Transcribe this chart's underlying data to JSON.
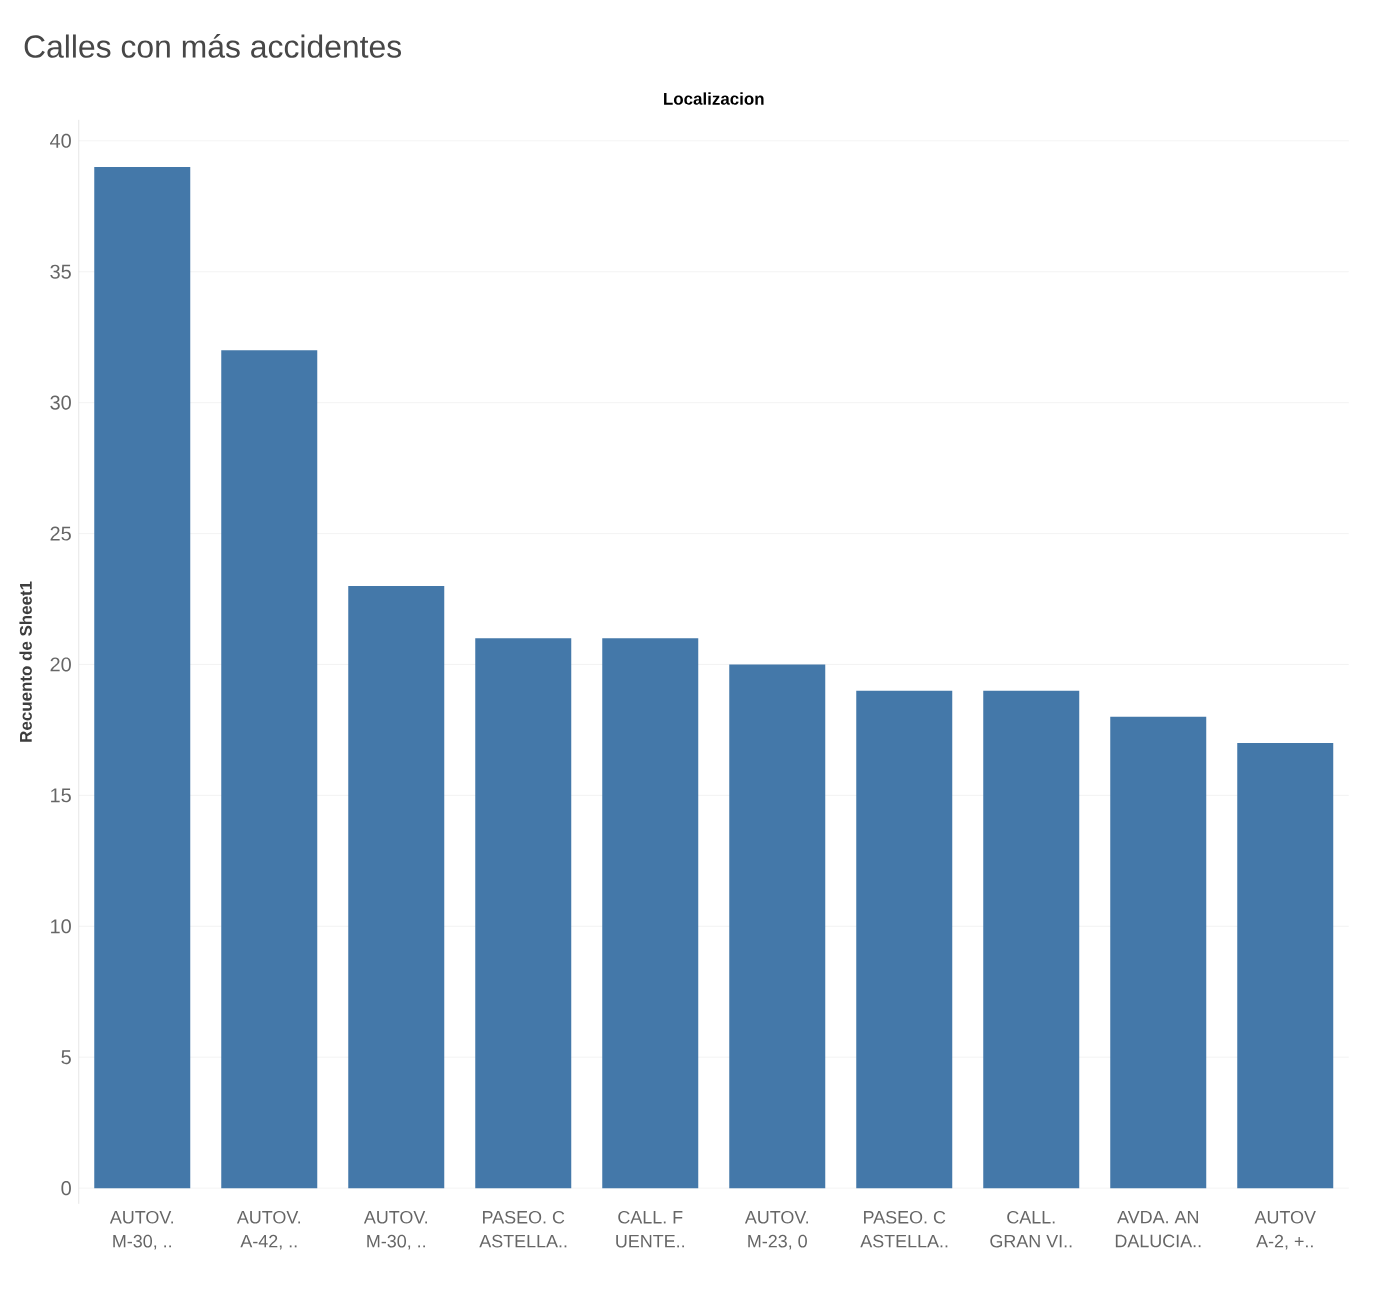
{
  "chart_data": {
    "type": "bar",
    "title": "Calles con más accidentes",
    "xlabel": "Localizacion",
    "ylabel": "Recuento de Sheet1",
    "categories": [
      "AUTOV. M-30, ..",
      "AUTOV. A-42, ..",
      "AUTOV. M-30, ..",
      "PASEO. C ASTELLA..",
      "CALL. F UENTE..",
      "AUTOV. M-23, 0",
      "PASEO. C ASTELLA..",
      "CALL. GRAN VI..",
      "AVDA. AN DALUCIA..",
      "AUTOV A-2, +.."
    ],
    "values": [
      39,
      32,
      23,
      21,
      21,
      20,
      19,
      19,
      18,
      17
    ],
    "color": "#4478a9",
    "ylim": [
      -0.6,
      40.8
    ],
    "yticks": [
      0,
      5,
      10,
      15,
      20,
      25,
      30,
      35,
      40
    ],
    "grid": "y"
  }
}
